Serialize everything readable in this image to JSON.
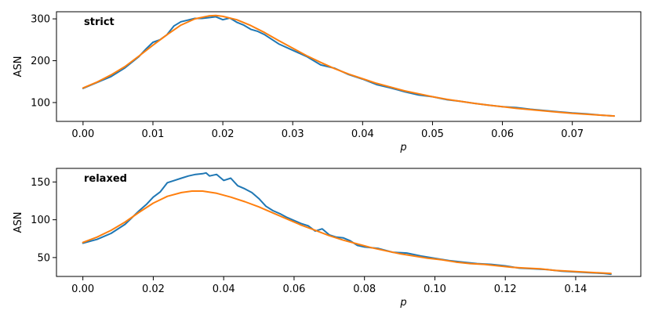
{
  "chart_data": [
    {
      "type": "line",
      "title": "strict",
      "xlabel": "p",
      "ylabel": "ASN",
      "xlim": [
        -0.0038,
        0.0798
      ],
      "ylim": [
        55,
        317
      ],
      "xticks": [
        0.0,
        0.01,
        0.02,
        0.03,
        0.04,
        0.05,
        0.06,
        0.07
      ],
      "xtick_labels": [
        "0.00",
        "0.01",
        "0.02",
        "0.03",
        "0.04",
        "0.05",
        "0.06",
        "0.07"
      ],
      "yticks": [
        100,
        200,
        300
      ],
      "ytick_labels": [
        "100",
        "200",
        "300"
      ],
      "grid": false,
      "series": [
        {
          "color": "#1f77b4",
          "x": [
            0.0,
            0.002,
            0.004,
            0.006,
            0.008,
            0.009,
            0.01,
            0.011,
            0.012,
            0.013,
            0.014,
            0.015,
            0.016,
            0.017,
            0.018,
            0.019,
            0.02,
            0.021,
            0.022,
            0.023,
            0.024,
            0.025,
            0.026,
            0.028,
            0.03,
            0.032,
            0.034,
            0.036,
            0.038,
            0.04,
            0.042,
            0.044,
            0.046,
            0.048,
            0.05,
            0.052,
            0.054,
            0.056,
            0.058,
            0.06,
            0.062,
            0.064,
            0.066,
            0.068,
            0.07,
            0.072,
            0.074,
            0.076
          ],
          "y": [
            134,
            148,
            162,
            183,
            210,
            228,
            244,
            250,
            262,
            283,
            293,
            297,
            301,
            301,
            303,
            305,
            298,
            302,
            292,
            285,
            275,
            270,
            262,
            240,
            225,
            210,
            190,
            182,
            167,
            156,
            143,
            135,
            126,
            118,
            114,
            107,
            103,
            98,
            94,
            90,
            88,
            84,
            81,
            78,
            75,
            73,
            70,
            68
          ]
        },
        {
          "color": "#ff7f0e",
          "x": [
            0.0,
            0.002,
            0.004,
            0.006,
            0.008,
            0.01,
            0.012,
            0.014,
            0.016,
            0.018,
            0.019,
            0.02,
            0.022,
            0.024,
            0.026,
            0.028,
            0.03,
            0.032,
            0.034,
            0.036,
            0.038,
            0.04,
            0.042,
            0.044,
            0.046,
            0.048,
            0.05,
            0.052,
            0.054,
            0.056,
            0.058,
            0.06,
            0.062,
            0.064,
            0.066,
            0.068,
            0.07,
            0.072,
            0.074,
            0.076
          ],
          "y": [
            135,
            149,
            166,
            186,
            211,
            237,
            262,
            285,
            300,
            307,
            308,
            306,
            298,
            284,
            267,
            248,
            230,
            212,
            196,
            181,
            168,
            157,
            146,
            137,
            128,
            121,
            114,
            108,
            103,
            98,
            94,
            90,
            86,
            83,
            80,
            77,
            74,
            72,
            70,
            68
          ]
        }
      ]
    },
    {
      "type": "line",
      "title": "relaxed",
      "xlabel": "p",
      "ylabel": "ASN",
      "xlim": [
        -0.0075,
        0.1585
      ],
      "ylim": [
        25,
        168
      ],
      "xticks": [
        0.0,
        0.02,
        0.04,
        0.06,
        0.08,
        0.1,
        0.12,
        0.14
      ],
      "xtick_labels": [
        "0.00",
        "0.02",
        "0.04",
        "0.06",
        "0.08",
        "0.10",
        "0.12",
        "0.14"
      ],
      "yticks": [
        50,
        100,
        150
      ],
      "ytick_labels": [
        "50",
        "100",
        "150"
      ],
      "grid": false,
      "series": [
        {
          "color": "#1f77b4",
          "x": [
            0.0,
            0.004,
            0.008,
            0.012,
            0.016,
            0.018,
            0.02,
            0.022,
            0.024,
            0.026,
            0.028,
            0.03,
            0.032,
            0.034,
            0.035,
            0.036,
            0.038,
            0.04,
            0.042,
            0.044,
            0.046,
            0.048,
            0.05,
            0.052,
            0.054,
            0.056,
            0.058,
            0.06,
            0.062,
            0.064,
            0.066,
            0.068,
            0.07,
            0.072,
            0.074,
            0.076,
            0.078,
            0.08,
            0.084,
            0.088,
            0.092,
            0.096,
            0.1,
            0.104,
            0.108,
            0.112,
            0.116,
            0.12,
            0.124,
            0.128,
            0.132,
            0.136,
            0.14,
            0.144,
            0.148,
            0.15
          ],
          "y": [
            69,
            74,
            82,
            94,
            112,
            120,
            130,
            137,
            149,
            152,
            155,
            158,
            160,
            161,
            162,
            158,
            160,
            152,
            155,
            145,
            141,
            136,
            128,
            118,
            112,
            108,
            103,
            99,
            95,
            92,
            85,
            88,
            80,
            77,
            76,
            72,
            66,
            64,
            62,
            57,
            56,
            52,
            49,
            46,
            44,
            42,
            41,
            39,
            36,
            35,
            34,
            32,
            31,
            30,
            29,
            28
          ]
        },
        {
          "color": "#ff7f0e",
          "x": [
            0.0,
            0.004,
            0.008,
            0.012,
            0.016,
            0.02,
            0.024,
            0.028,
            0.031,
            0.034,
            0.038,
            0.042,
            0.046,
            0.05,
            0.054,
            0.058,
            0.062,
            0.066,
            0.07,
            0.074,
            0.078,
            0.082,
            0.086,
            0.09,
            0.094,
            0.098,
            0.102,
            0.106,
            0.11,
            0.114,
            0.118,
            0.122,
            0.126,
            0.13,
            0.134,
            0.138,
            0.142,
            0.146,
            0.15
          ],
          "y": [
            70,
            77,
            86,
            97,
            110,
            122,
            131,
            136,
            138,
            138,
            135,
            130,
            124,
            117,
            109,
            101,
            93,
            86,
            79,
            73,
            68,
            63,
            59,
            55,
            52,
            49,
            47,
            44,
            42,
            41,
            39,
            37,
            36,
            35,
            33,
            32,
            31,
            30,
            29
          ]
        }
      ]
    }
  ]
}
